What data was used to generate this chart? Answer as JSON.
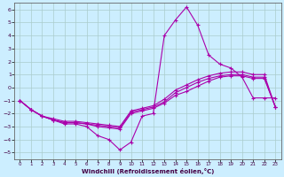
{
  "xlabel": "Windchill (Refroidissement éolien,°C)",
  "bg_color": "#cceeff",
  "grid_color": "#aacccc",
  "line_color": "#aa00aa",
  "xlim": [
    -0.5,
    23.5
  ],
  "ylim": [
    -5.5,
    6.5
  ],
  "xticks": [
    0,
    1,
    2,
    3,
    4,
    5,
    6,
    7,
    8,
    9,
    10,
    11,
    12,
    13,
    14,
    15,
    16,
    17,
    18,
    19,
    20,
    21,
    22,
    23
  ],
  "yticks": [
    -5,
    -4,
    -3,
    -2,
    -1,
    0,
    1,
    2,
    3,
    4,
    5,
    6
  ],
  "hours": [
    0,
    1,
    2,
    3,
    4,
    5,
    6,
    7,
    8,
    9,
    10,
    11,
    12,
    13,
    14,
    15,
    16,
    17,
    18,
    19,
    20,
    21,
    22,
    23
  ],
  "line1": [
    -1.0,
    -1.7,
    -2.2,
    -2.5,
    -2.8,
    -2.8,
    -3.0,
    -3.7,
    -4.0,
    -4.8,
    -4.2,
    -2.2,
    -2.0,
    4.0,
    5.2,
    6.2,
    4.8,
    2.5,
    1.8,
    1.5,
    0.8,
    -0.8,
    -0.8,
    -0.8
  ],
  "line2": [
    -1.0,
    -1.7,
    -2.2,
    -2.5,
    -2.7,
    -2.7,
    -2.8,
    -3.0,
    -3.1,
    -3.2,
    -2.0,
    -1.8,
    -1.6,
    -1.2,
    -0.6,
    -0.3,
    0.1,
    0.5,
    0.8,
    0.9,
    0.9,
    0.7,
    0.7,
    -1.5
  ],
  "line3": [
    -1.0,
    -1.7,
    -2.2,
    -2.5,
    -2.7,
    -2.7,
    -2.8,
    -2.9,
    -3.0,
    -3.1,
    -1.9,
    -1.7,
    -1.5,
    -1.1,
    -0.4,
    0.0,
    0.4,
    0.7,
    0.9,
    1.0,
    1.0,
    0.8,
    0.8,
    -1.5
  ],
  "line4": [
    -1.0,
    -1.7,
    -2.2,
    -2.4,
    -2.6,
    -2.6,
    -2.7,
    -2.8,
    -2.9,
    -3.0,
    -1.8,
    -1.6,
    -1.4,
    -0.9,
    -0.2,
    0.2,
    0.6,
    0.9,
    1.1,
    1.2,
    1.2,
    1.0,
    1.0,
    -1.5
  ]
}
